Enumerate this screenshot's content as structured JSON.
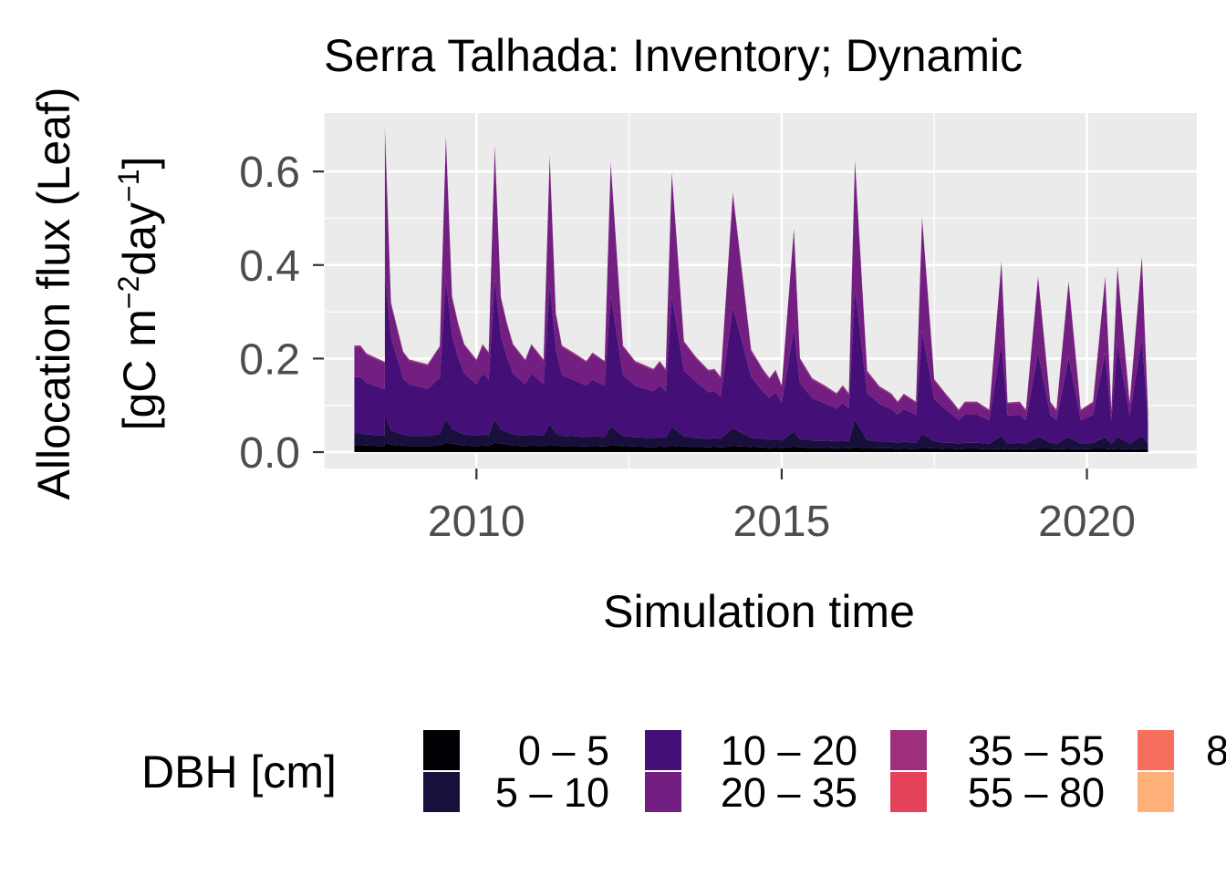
{
  "chart_data": {
    "type": "area",
    "stacked": true,
    "title": "Serra Talhada: Inventory; Dynamic",
    "xlabel": "Simulation time",
    "ylabel_line1": "Allocation flux (Leaf)",
    "ylabel_line2": "[gC m",
    "ylabel_exp1": "−2",
    "ylabel_mid": "day",
    "ylabel_exp2": "−1",
    "ylabel_end": "]",
    "xlim": [
      2007.5,
      2021.8
    ],
    "ylim": [
      -0.035,
      0.725
    ],
    "x_ticks": [
      2010,
      2015,
      2020
    ],
    "x_tick_labels": [
      "2010",
      "2015",
      "2020"
    ],
    "y_ticks": [
      0.0,
      0.2,
      0.4,
      0.6
    ],
    "y_tick_labels": [
      "0.0",
      "0.2",
      "0.4",
      "0.6"
    ],
    "grid": true,
    "legend": {
      "title": "DBH [cm]",
      "placement": "bottom",
      "entries": [
        {
          "label": "0 – 5",
          "color": "#000004"
        },
        {
          "label": "5 – 10",
          "color": "#180f3d"
        },
        {
          "label": "10 – 20",
          "color": "#440f76"
        },
        {
          "label": "20 – 35",
          "color": "#721f81"
        },
        {
          "label": "35 – 55",
          "color": "#9e2f7f"
        },
        {
          "label": "55 – 80",
          "color": "#e3425a"
        },
        {
          "label": "8",
          "color": "#f66e5c"
        },
        {
          "label": "",
          "color": "#feb078"
        }
      ]
    },
    "x": [
      2008.0,
      2008.1,
      2008.2,
      2008.5,
      2008.5,
      2008.6,
      2008.8,
      2008.9,
      2009.2,
      2009.4,
      2009.5,
      2009.6,
      2009.7,
      2009.8,
      2010.0,
      2010.1,
      2010.2,
      2010.3,
      2010.4,
      2010.5,
      2010.6,
      2010.8,
      2010.9,
      2011.1,
      2011.2,
      2011.3,
      2011.4,
      2011.6,
      2011.8,
      2011.9,
      2012.1,
      2012.2,
      2012.4,
      2012.6,
      2012.9,
      2013.0,
      2013.1,
      2013.2,
      2013.4,
      2013.6,
      2013.8,
      2013.9,
      2014.0,
      2014.2,
      2014.5,
      2014.7,
      2014.8,
      2014.9,
      2015.0,
      2015.2,
      2015.3,
      2015.5,
      2015.7,
      2015.9,
      2016.0,
      2016.1,
      2016.2,
      2016.4,
      2016.6,
      2016.8,
      2016.9,
      2017.0,
      2017.2,
      2017.3,
      2017.5,
      2017.7,
      2017.8,
      2017.9,
      2018.0,
      2018.2,
      2018.4,
      2018.6,
      2018.7,
      2018.9,
      2019.0,
      2019.2,
      2019.4,
      2019.5,
      2019.7,
      2019.9,
      2020.1,
      2020.3,
      2020.4,
      2020.5,
      2020.7,
      2020.9,
      2021.0
    ],
    "series": [
      {
        "name": "0 – 5",
        "values": [
          0.015,
          0.015,
          0.014,
          0.013,
          0.02,
          0.016,
          0.014,
          0.013,
          0.013,
          0.014,
          0.02,
          0.018,
          0.016,
          0.014,
          0.013,
          0.014,
          0.013,
          0.02,
          0.018,
          0.016,
          0.014,
          0.013,
          0.014,
          0.013,
          0.015,
          0.014,
          0.013,
          0.013,
          0.012,
          0.013,
          0.012,
          0.015,
          0.013,
          0.012,
          0.011,
          0.012,
          0.011,
          0.014,
          0.012,
          0.011,
          0.01,
          0.011,
          0.01,
          0.013,
          0.011,
          0.01,
          0.009,
          0.01,
          0.009,
          0.012,
          0.01,
          0.009,
          0.009,
          0.008,
          0.009,
          0.008,
          0.01,
          0.009,
          0.008,
          0.008,
          0.007,
          0.008,
          0.007,
          0.009,
          0.008,
          0.007,
          0.007,
          0.006,
          0.007,
          0.007,
          0.006,
          0.007,
          0.006,
          0.007,
          0.006,
          0.007,
          0.007,
          0.006,
          0.007,
          0.006,
          0.007,
          0.007,
          0.006,
          0.007,
          0.006,
          0.007,
          0.006
        ]
      },
      {
        "name": "5 – 10",
        "values": [
          0.025,
          0.025,
          0.024,
          0.022,
          0.06,
          0.03,
          0.023,
          0.022,
          0.022,
          0.025,
          0.05,
          0.032,
          0.027,
          0.024,
          0.022,
          0.024,
          0.023,
          0.05,
          0.03,
          0.027,
          0.024,
          0.022,
          0.024,
          0.022,
          0.045,
          0.026,
          0.022,
          0.021,
          0.02,
          0.022,
          0.02,
          0.04,
          0.022,
          0.02,
          0.019,
          0.02,
          0.019,
          0.04,
          0.022,
          0.019,
          0.018,
          0.019,
          0.018,
          0.038,
          0.02,
          0.018,
          0.017,
          0.018,
          0.016,
          0.032,
          0.018,
          0.016,
          0.016,
          0.015,
          0.016,
          0.015,
          0.06,
          0.017,
          0.015,
          0.014,
          0.013,
          0.014,
          0.013,
          0.03,
          0.015,
          0.013,
          0.013,
          0.012,
          0.013,
          0.013,
          0.012,
          0.028,
          0.012,
          0.013,
          0.012,
          0.026,
          0.013,
          0.012,
          0.025,
          0.012,
          0.013,
          0.025,
          0.012,
          0.026,
          0.012,
          0.028,
          0.012
        ]
      },
      {
        "name": "10 – 20",
        "values": [
          0.12,
          0.12,
          0.11,
          0.1,
          0.3,
          0.2,
          0.12,
          0.11,
          0.1,
          0.12,
          0.3,
          0.2,
          0.16,
          0.13,
          0.11,
          0.13,
          0.12,
          0.3,
          0.2,
          0.16,
          0.13,
          0.11,
          0.13,
          0.11,
          0.3,
          0.18,
          0.13,
          0.12,
          0.11,
          0.12,
          0.11,
          0.28,
          0.13,
          0.11,
          0.1,
          0.11,
          0.1,
          0.28,
          0.14,
          0.12,
          0.1,
          0.1,
          0.09,
          0.26,
          0.13,
          0.1,
          0.09,
          0.1,
          0.08,
          0.22,
          0.12,
          0.09,
          0.08,
          0.07,
          0.08,
          0.07,
          0.28,
          0.1,
          0.08,
          0.07,
          0.06,
          0.07,
          0.06,
          0.22,
          0.09,
          0.07,
          0.06,
          0.05,
          0.06,
          0.06,
          0.05,
          0.2,
          0.06,
          0.06,
          0.05,
          0.18,
          0.06,
          0.05,
          0.17,
          0.05,
          0.06,
          0.18,
          0.05,
          0.2,
          0.06,
          0.21,
          0.05
        ]
      },
      {
        "name": "20 – 35",
        "values": [
          0.065,
          0.065,
          0.06,
          0.055,
          0.31,
          0.07,
          0.055,
          0.05,
          0.05,
          0.065,
          0.3,
          0.08,
          0.07,
          0.06,
          0.05,
          0.06,
          0.055,
          0.28,
          0.08,
          0.07,
          0.06,
          0.05,
          0.06,
          0.05,
          0.27,
          0.075,
          0.06,
          0.055,
          0.05,
          0.055,
          0.05,
          0.28,
          0.06,
          0.05,
          0.045,
          0.05,
          0.045,
          0.26,
          0.06,
          0.05,
          0.045,
          0.045,
          0.04,
          0.24,
          0.055,
          0.045,
          0.04,
          0.045,
          0.035,
          0.21,
          0.05,
          0.04,
          0.035,
          0.03,
          0.035,
          0.03,
          0.27,
          0.045,
          0.035,
          0.03,
          0.025,
          0.03,
          0.025,
          0.24,
          0.04,
          0.03,
          0.025,
          0.02,
          0.025,
          0.025,
          0.02,
          0.17,
          0.025,
          0.025,
          0.02,
          0.16,
          0.025,
          0.02,
          0.16,
          0.02,
          0.025,
          0.16,
          0.02,
          0.16,
          0.025,
          0.17,
          0.02
        ]
      },
      {
        "name": "35 – 55",
        "values": [
          0.003,
          0.003,
          0.003,
          0.003,
          0.006,
          0.004,
          0.003,
          0.003,
          0.003,
          0.003,
          0.006,
          0.004,
          0.003,
          0.003,
          0.003,
          0.003,
          0.003,
          0.005,
          0.004,
          0.003,
          0.003,
          0.003,
          0.003,
          0.003,
          0.005,
          0.003,
          0.003,
          0.003,
          0.003,
          0.003,
          0.003,
          0.005,
          0.003,
          0.003,
          0.003,
          0.003,
          0.003,
          0.005,
          0.003,
          0.003,
          0.003,
          0.003,
          0.003,
          0.005,
          0.003,
          0.003,
          0.003,
          0.003,
          0.003,
          0.004,
          0.003,
          0.003,
          0.003,
          0.003,
          0.003,
          0.003,
          0.005,
          0.003,
          0.003,
          0.003,
          0.003,
          0.003,
          0.003,
          0.004,
          0.003,
          0.003,
          0.003,
          0.003,
          0.003,
          0.003,
          0.003,
          0.004,
          0.003,
          0.003,
          0.003,
          0.004,
          0.003,
          0.003,
          0.004,
          0.003,
          0.003,
          0.004,
          0.003,
          0.004,
          0.003,
          0.004,
          0.003
        ]
      }
    ]
  }
}
